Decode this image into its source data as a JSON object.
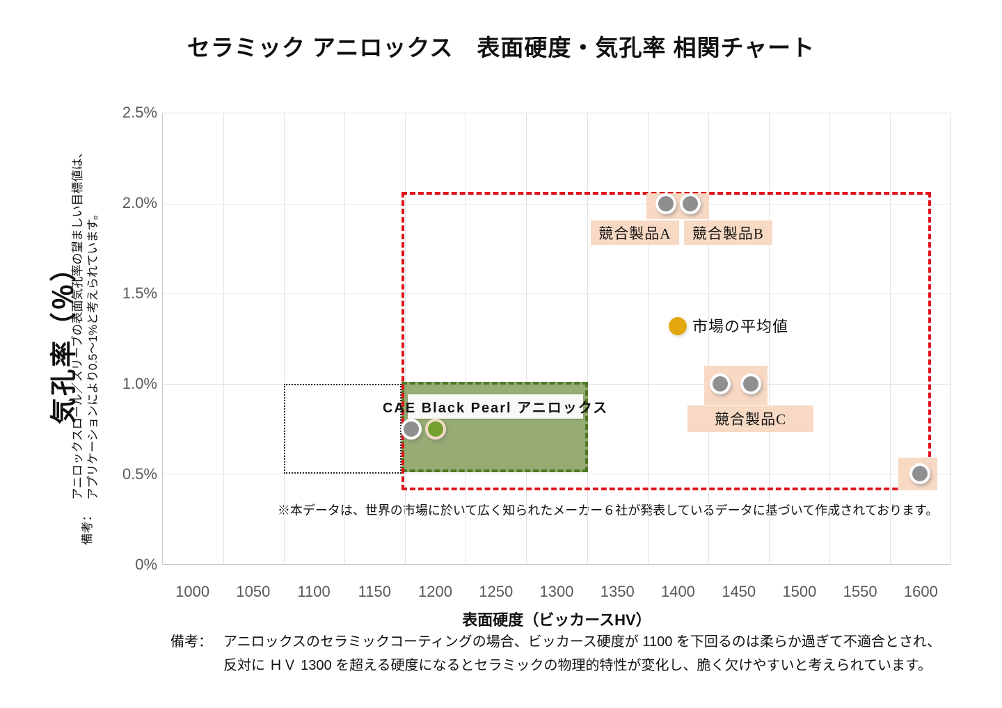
{
  "title": "セラミック アニロックス　表面硬度・気孔率 相関チャート",
  "y_axis": {
    "title": "気孔率（％）",
    "note_label": "備考：",
    "note_line1": "アニロックスロール／スリーブの表面気孔率の望ましい目標値は、",
    "note_line2": "アプリケーションにより0.5～1%と考えられています。"
  },
  "x_axis": {
    "title": "表面硬度（ビッカースHV）"
  },
  "footnote": "※本データは、世界の市場に於いて広く知られたメーカー６社が発表しているデータに基づいて作成されております。",
  "bottom_note": {
    "label": "備考：",
    "line1": "アニロックスのセラミックコーティングの場合、ビッカース硬度が 1100 を下回るのは柔らか過ぎて不適合とされ、",
    "line2": "反対に ＨＶ 1300 を超える硬度になるとセラミックの物理的特性が変化し、脆く欠けやすいと考えられています。"
  },
  "colors": {
    "red_boundary": "#e0131a",
    "green_zone_fill": "rgba(132,158,92,0.85)",
    "green_zone_border": "#4e7a21",
    "peach_box": "#f7d9c4",
    "gray_marker": "#8f8f8f",
    "green_marker": "#74a12f",
    "green_marker_ring": "#f3dcc6",
    "gold_marker": "#e4a70e"
  },
  "chart_data": {
    "type": "scatter",
    "xlabel": "表面硬度（ビッカースHV）",
    "ylabel": "気孔率（％）",
    "x_range": [
      975,
      1625
    ],
    "y_range": [
      0,
      2.5
    ],
    "x_ticks": [
      1000,
      1050,
      1100,
      1150,
      1200,
      1250,
      1300,
      1350,
      1400,
      1450,
      1500,
      1550,
      1600
    ],
    "x_tick_labels": [
      "1000",
      "1050",
      "1100",
      "1150",
      "1200",
      "1250",
      "1300",
      "1350",
      "1400",
      "1450",
      "1500",
      "1550",
      "1600"
    ],
    "y_ticks": [
      0,
      0.5,
      1.0,
      1.5,
      2.0,
      2.5
    ],
    "y_tick_labels": [
      "0%",
      "0.5%",
      "1.0%",
      "1.5%",
      "2.0%",
      "2.5%"
    ],
    "x_gridlines": [
      1025,
      1075,
      1125,
      1175,
      1225,
      1275,
      1325,
      1375,
      1425,
      1475,
      1525,
      1575
    ],
    "y_gridlines": [
      0.5,
      1.0,
      1.5,
      2.0
    ],
    "grid": true,
    "points": [
      {
        "name": "competitor-a-point",
        "hv": 1390,
        "porosity": 2.0,
        "marker": "gray"
      },
      {
        "name": "competitor-b-point",
        "hv": 1410,
        "porosity": 2.0,
        "marker": "gray"
      },
      {
        "name": "competitor-c-point-1",
        "hv": 1435,
        "porosity": 1.0,
        "marker": "gray"
      },
      {
        "name": "competitor-c-point-2",
        "hv": 1460,
        "porosity": 1.0,
        "marker": "gray"
      },
      {
        "name": "hv1600-point",
        "hv": 1600,
        "porosity": 0.5,
        "marker": "gray"
      },
      {
        "name": "cae-black-pearl-point-gray",
        "hv": 1180,
        "porosity": 0.75,
        "marker": "gray"
      },
      {
        "name": "cae-black-pearl-point-green",
        "hv": 1200,
        "porosity": 0.75,
        "marker": "green"
      },
      {
        "name": "market-average-point",
        "hv": 1400,
        "porosity": 1.32,
        "marker": "gold"
      }
    ],
    "zones": [
      {
        "name": "undersized-hardness-zone",
        "style": "dotted",
        "x": [
          1075,
          1172
        ],
        "y": [
          0.5,
          1.0
        ]
      },
      {
        "name": "cae-recommended-zone",
        "style": "green",
        "x": [
          1172,
          1326
        ],
        "y": [
          0.51,
          1.01
        ]
      },
      {
        "name": "market-data-boundary-zone",
        "style": "red",
        "x": [
          1172,
          1609
        ],
        "y": [
          0.41,
          2.065
        ]
      }
    ],
    "backdrops": [
      {
        "name": "competitor-ab-backdrop",
        "x": [
          1374,
          1426
        ],
        "y": [
          1.912,
          2.055
        ]
      },
      {
        "name": "competitor-c-backdrop",
        "x": [
          1422,
          1474
        ],
        "y": [
          0.885,
          1.098
        ]
      },
      {
        "name": "hv1600-point-backdrop",
        "x": [
          1582,
          1614
        ],
        "y": [
          0.41,
          0.59
        ]
      }
    ],
    "annotations": [
      {
        "name": "competitor-a-label",
        "text": "競合製品A",
        "style": "peach",
        "x": [
          1328,
          1401
        ],
        "y": [
          1.77,
          1.905
        ]
      },
      {
        "name": "competitor-b-label",
        "text": "競合製品B",
        "style": "peach",
        "x": [
          1405,
          1478
        ],
        "y": [
          1.77,
          1.905
        ]
      },
      {
        "name": "competitor-c-label",
        "text": "競合製品C",
        "style": "peach",
        "x": [
          1408,
          1512
        ],
        "y": [
          0.732,
          0.878
        ]
      },
      {
        "name": "cae-black-pearl-label",
        "text": "CAE Black Pearl アニロックス",
        "style": "white",
        "x": [
          1177,
          1322
        ],
        "y": [
          0.808,
          0.943
        ]
      },
      {
        "name": "market-average-label",
        "text": "市場の平均値",
        "style": "plain",
        "x": [
          1412
        ],
        "y": [
          1.325
        ]
      }
    ]
  }
}
